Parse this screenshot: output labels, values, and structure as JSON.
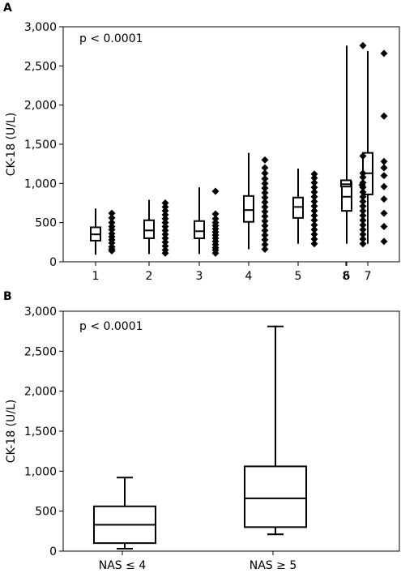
{
  "chart_data": [
    {
      "type": "box",
      "panel": "A",
      "annotation": "p < 0.0001",
      "xlabel": "",
      "ylabel": "CK-18 (U/L)",
      "ylim": [
        0,
        3000
      ],
      "yticks": [
        0,
        500,
        1000,
        1500,
        2000,
        2500,
        3000
      ],
      "ytick_labels": [
        "0",
        "500",
        "1,000",
        "1,500",
        "2,000",
        "2,500",
        "3,000"
      ],
      "categories": [
        "1",
        "2",
        "3",
        "4",
        "5",
        "6",
        "7",
        "8"
      ],
      "boxes": [
        {
          "category": "1",
          "min": 90,
          "q1": 270,
          "median": 350,
          "q3": 440,
          "max": 680
        },
        {
          "category": "2",
          "min": 100,
          "q1": 300,
          "median": 400,
          "q3": 530,
          "max": 790
        },
        {
          "category": "3",
          "min": 100,
          "q1": 300,
          "median": 390,
          "q3": 520,
          "max": 950
        },
        {
          "category": "4",
          "min": 160,
          "q1": 510,
          "median": 660,
          "q3": 840,
          "max": 1390
        },
        {
          "category": "5",
          "min": 230,
          "q1": 560,
          "median": 700,
          "q3": 820,
          "max": 1190
        },
        {
          "category": "6",
          "min": 230,
          "q1": 650,
          "median": 830,
          "q3": 1020,
          "max": 2760
        },
        {
          "category": "7",
          "min": 230,
          "q1": 860,
          "median": 1130,
          "q3": 1390,
          "max": 2690
        },
        {
          "category": "8",
          "min": 960,
          "q1": 960,
          "median": 990,
          "q3": 1040,
          "max": 1040
        }
      ],
      "points": [
        {
          "category": "1",
          "values": [
            140,
            160,
            190,
            240,
            280,
            320,
            360,
            410,
            450,
            500,
            560,
            620
          ]
        },
        {
          "category": "2",
          "values": [
            110,
            150,
            200,
            250,
            300,
            350,
            400,
            450,
            500,
            550,
            600,
            650,
            700,
            750
          ]
        },
        {
          "category": "3",
          "values": [
            110,
            150,
            180,
            220,
            260,
            300,
            340,
            380,
            420,
            460,
            500,
            550,
            610,
            900
          ]
        },
        {
          "category": "4",
          "values": [
            160,
            220,
            280,
            340,
            400,
            460,
            520,
            580,
            640,
            700,
            760,
            820,
            880,
            940,
            1000,
            1060,
            1130,
            1200,
            1300
          ]
        },
        {
          "category": "5",
          "values": [
            230,
            290,
            350,
            410,
            470,
            530,
            590,
            650,
            710,
            770,
            830,
            890,
            950,
            1010,
            1070,
            1120
          ]
        },
        {
          "category": "6",
          "values": [
            230,
            290,
            350,
            410,
            470,
            530,
            590,
            650,
            710,
            770,
            830,
            890,
            950,
            1010,
            1080,
            1130,
            1350,
            2760
          ]
        },
        {
          "category": "7",
          "values": [
            260,
            450,
            620,
            800,
            960,
            1100,
            1200,
            1280,
            1860,
            2660
          ]
        },
        {
          "category": "8",
          "values": [
            980
          ]
        }
      ]
    },
    {
      "type": "box",
      "panel": "B",
      "annotation": "p < 0.0001",
      "xlabel": "",
      "ylabel": "CK-18 (U/L)",
      "ylim": [
        0,
        3000
      ],
      "yticks": [
        0,
        500,
        1000,
        1500,
        2000,
        2500,
        3000
      ],
      "ytick_labels": [
        "0",
        "500",
        "1,000",
        "1,500",
        "2,000",
        "2,500",
        "3,000"
      ],
      "categories": [
        "NAS ≤ 4",
        "NAS ≥ 5"
      ],
      "boxes": [
        {
          "category": "NAS ≤ 4",
          "min": 30,
          "q1": 100,
          "median": 330,
          "q3": 560,
          "max": 920
        },
        {
          "category": "NAS ≥ 5",
          "min": 210,
          "q1": 300,
          "median": 660,
          "q3": 1060,
          "max": 2810
        }
      ],
      "points": []
    }
  ]
}
